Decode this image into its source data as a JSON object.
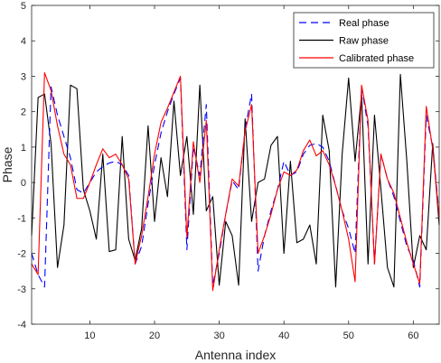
{
  "chart_data": {
    "type": "line",
    "xlabel": "Antenna index",
    "ylabel": "Phase",
    "xlim": [
      1,
      64
    ],
    "ylim": [
      -4,
      5
    ],
    "x_ticks": [
      10,
      20,
      30,
      40,
      50,
      60
    ],
    "y_ticks": [
      -4,
      -3,
      -2,
      -1,
      0,
      1,
      2,
      3,
      4,
      5
    ],
    "grid": false,
    "legend_position": "top-right",
    "x": [
      1,
      2,
      3,
      4,
      5,
      6,
      7,
      8,
      9,
      10,
      11,
      12,
      13,
      14,
      15,
      16,
      17,
      18,
      19,
      20,
      21,
      22,
      23,
      24,
      25,
      26,
      27,
      28,
      29,
      30,
      31,
      32,
      33,
      34,
      35,
      36,
      37,
      38,
      39,
      40,
      41,
      42,
      43,
      44,
      45,
      46,
      47,
      48,
      49,
      50,
      51,
      52,
      53,
      54,
      55,
      56,
      57,
      58,
      59,
      60,
      61,
      62,
      63,
      64
    ],
    "series": [
      {
        "name": "Real phase",
        "color": "#0000ff",
        "dash": "8,5",
        "values": [
          -2.0,
          -2.6,
          -2.95,
          2.7,
          1.9,
          1.3,
          0.7,
          -0.2,
          -0.3,
          0.0,
          0.3,
          0.45,
          0.55,
          0.6,
          0.5,
          0.2,
          -2.3,
          -1.8,
          -0.6,
          0.5,
          1.4,
          2.0,
          2.5,
          2.95,
          -1.9,
          1.0,
          0.2,
          2.2,
          -2.9,
          -2.0,
          -0.9,
          0.05,
          -0.2,
          1.5,
          2.5,
          -2.5,
          -1.5,
          -0.8,
          -0.2,
          0.6,
          0.2,
          0.3,
          0.8,
          1.05,
          1.1,
          1.0,
          0.6,
          -0.1,
          -0.8,
          -1.3,
          -2.0,
          2.7,
          1.6,
          -2.3,
          0.8,
          0.1,
          -0.4,
          -1.1,
          -1.8,
          -2.2,
          -2.95,
          1.9,
          1.0,
          -0.9
        ]
      },
      {
        "name": "Raw phase",
        "color": "#000000",
        "dash": "",
        "values": [
          -1.5,
          2.4,
          2.5,
          1.1,
          -2.4,
          -1.2,
          2.75,
          2.65,
          -0.2,
          -0.8,
          -1.6,
          0.8,
          -1.95,
          -1.9,
          1.3,
          -1.6,
          -2.2,
          -1.3,
          1.6,
          -1.1,
          0.7,
          -0.4,
          2.3,
          0.2,
          1.3,
          -0.9,
          2.75,
          -0.8,
          -0.4,
          -2.9,
          -1.1,
          -1.5,
          -2.9,
          1.8,
          -1.1,
          0.0,
          0.1,
          1.05,
          1.3,
          -2.0,
          0.6,
          -1.7,
          -1.6,
          -1.2,
          -2.3,
          1.9,
          0.9,
          -2.95,
          0.8,
          2.95,
          0.6,
          2.5,
          -2.3,
          1.9,
          -0.2,
          -2.4,
          -2.95,
          3.05,
          0.6,
          -2.4,
          -1.5,
          -1.9,
          1.1,
          -1.2
        ]
      },
      {
        "name": "Calibrated phase",
        "color": "#ff0000",
        "dash": "",
        "values": [
          -2.3,
          -2.6,
          3.1,
          2.6,
          1.6,
          0.8,
          0.5,
          -0.45,
          -0.45,
          0.0,
          0.5,
          0.95,
          0.7,
          0.8,
          0.5,
          0.1,
          -2.3,
          -1.5,
          -0.4,
          0.8,
          1.7,
          2.1,
          2.55,
          3.0,
          -1.55,
          1.15,
          0.0,
          1.75,
          -3.05,
          -1.9,
          -0.9,
          0.1,
          -0.1,
          1.45,
          2.2,
          -2.0,
          -1.5,
          -0.9,
          -0.2,
          0.3,
          0.2,
          0.35,
          0.9,
          1.2,
          0.75,
          0.9,
          0.5,
          -0.1,
          -0.8,
          -1.6,
          -2.8,
          2.75,
          1.75,
          -2.3,
          0.8,
          0.1,
          -0.3,
          -1.0,
          -1.7,
          -2.3,
          -2.85,
          2.15,
          0.95,
          -1.0
        ]
      }
    ]
  }
}
